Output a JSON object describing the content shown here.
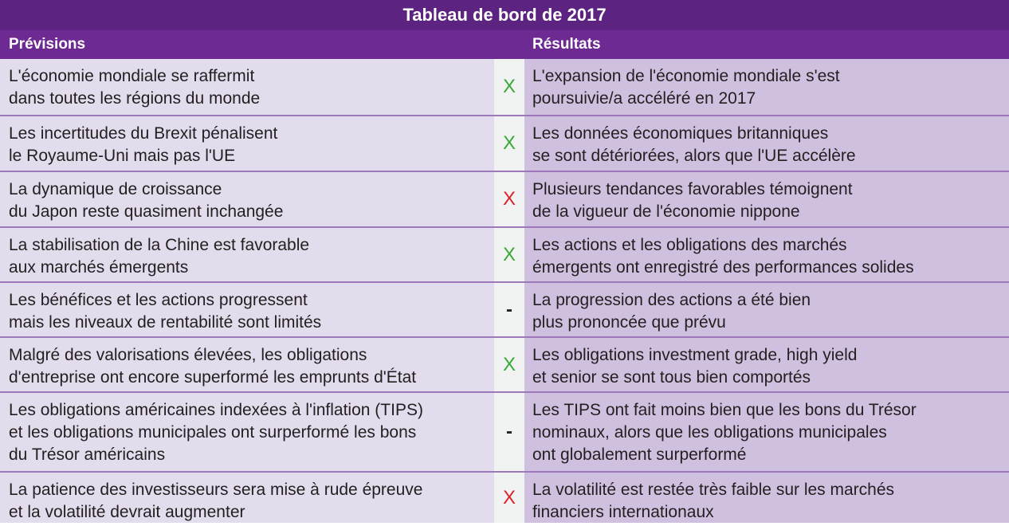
{
  "title": "Tableau de bord de 2017",
  "headers": {
    "forecasts": "Prévisions",
    "results": "Résultats"
  },
  "colors": {
    "title_bg": "#5c2480",
    "header_bg": "#6e2a93",
    "forecast_bg": "#e3dcec",
    "result_bg": "#cec0de",
    "mark_correct": "#39a935",
    "mark_wrong": "#d9222a"
  },
  "rows": [
    {
      "forecast": [
        "L'économie mondiale se raffermit",
        "dans toutes les régions du monde"
      ],
      "mark": "X",
      "mark_status": "correct",
      "result": [
        "L'expansion de l'économie mondiale s'est",
        "poursuivie/a accéléré en 2017"
      ]
    },
    {
      "forecast": [
        "Les incertitudes du Brexit pénalisent",
        "le Royaume-Uni mais pas l'UE"
      ],
      "mark": "X",
      "mark_status": "correct",
      "result": [
        "Les données économiques britanniques",
        "se sont détériorées, alors que l'UE accélère"
      ]
    },
    {
      "forecast": [
        "La dynamique de croissance",
        "du Japon reste quasiment inchangée"
      ],
      "mark": "X",
      "mark_status": "wrong",
      "result": [
        "Plusieurs tendances favorables témoignent",
        "de la vigueur de l'économie nippone"
      ]
    },
    {
      "forecast": [
        "La stabilisation de la Chine est favorable",
        "aux marchés émergents"
      ],
      "mark": "X",
      "mark_status": "correct",
      "result": [
        "Les actions et les obligations des marchés",
        "émergents ont enregistré des performances solides"
      ]
    },
    {
      "forecast": [
        "Les bénéfices et les actions progressent",
        "mais les niveaux de rentabilité sont limités"
      ],
      "mark": "-",
      "mark_status": "neutral",
      "result": [
        "La progression des actions a été bien",
        "plus prononcée que prévu"
      ]
    },
    {
      "forecast": [
        "Malgré des valorisations élevées, les obligations",
        "d'entreprise ont encore superformé les emprunts d'État"
      ],
      "mark": "X",
      "mark_status": "correct",
      "result": [
        "Les obligations investment grade, high yield",
        "et senior se sont tous bien comportés"
      ]
    },
    {
      "forecast": [
        "Les obligations américaines indexées à l'inflation (TIPS)",
        "et les obligations municipales ont surperformé les bons",
        "du Trésor américains"
      ],
      "mark": "-",
      "mark_status": "neutral",
      "result": [
        "Les TIPS ont fait moins bien que les bons du Trésor",
        "nominaux, alors que les obligations municipales",
        "ont globalement surperformé"
      ]
    },
    {
      "forecast": [
        "La patience des investisseurs sera mise à rude épreuve",
        "et la volatilité devrait augmenter"
      ],
      "mark": "X",
      "mark_status": "wrong",
      "result": [
        "La volatilité est restée très faible sur les marchés",
        "financiers internationaux"
      ]
    }
  ]
}
